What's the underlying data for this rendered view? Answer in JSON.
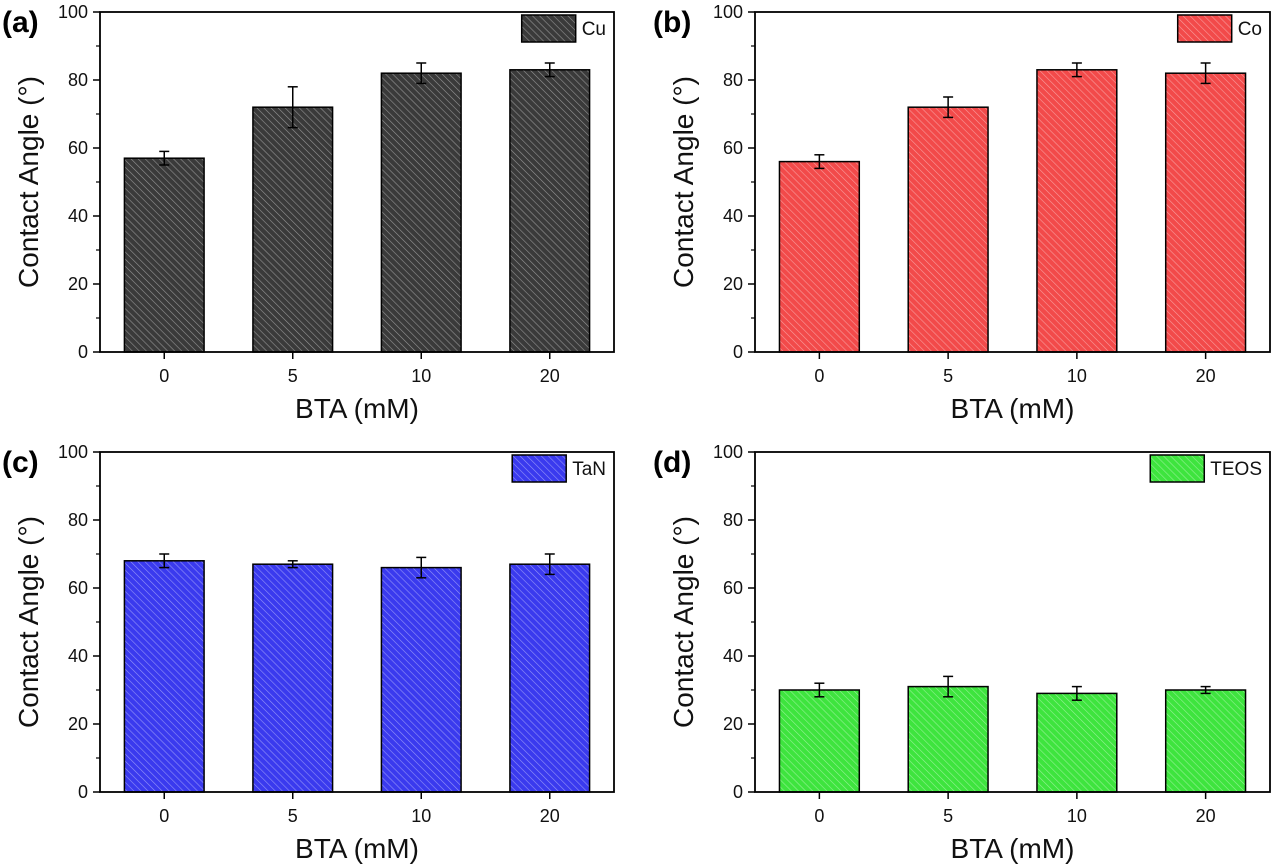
{
  "chart_data": [
    {
      "panel": "(a)",
      "type": "bar",
      "legend": "Cu",
      "color": "#3a3a3a",
      "categories": [
        "0",
        "5",
        "10",
        "20"
      ],
      "values": [
        57,
        72,
        82,
        83
      ],
      "errors": [
        2,
        6,
        3,
        2
      ],
      "xlabel": "BTA (mM)",
      "ylabel": "Contact Angle (°)",
      "ylim": [
        0,
        100
      ],
      "yticks": [
        "0",
        "20",
        "40",
        "60",
        "80",
        "100"
      ],
      "legend_position": "top-right"
    },
    {
      "panel": "(b)",
      "type": "bar",
      "legend": "Co",
      "color": "#f24a4a",
      "categories": [
        "0",
        "5",
        "10",
        "20"
      ],
      "values": [
        56,
        72,
        83,
        82
      ],
      "errors": [
        2,
        3,
        2,
        3
      ],
      "xlabel": "BTA (mM)",
      "ylabel": "Contact Angle (°)",
      "ylim": [
        0,
        100
      ],
      "yticks": [
        "0",
        "20",
        "40",
        "60",
        "80",
        "100"
      ],
      "legend_position": "top-right"
    },
    {
      "panel": "(c)",
      "type": "bar",
      "legend": "TaN",
      "color": "#3a3aee",
      "categories": [
        "0",
        "5",
        "10",
        "20"
      ],
      "values": [
        68,
        67,
        66,
        67
      ],
      "errors": [
        2,
        1,
        3,
        3
      ],
      "xlabel": "BTA (mM)",
      "ylabel": "Contact Angle (°)",
      "ylim": [
        0,
        100
      ],
      "yticks": [
        "0",
        "20",
        "40",
        "60",
        "80",
        "100"
      ],
      "legend_position": "top-right"
    },
    {
      "panel": "(d)",
      "type": "bar",
      "legend": "TEOS",
      "color": "#3ee43e",
      "categories": [
        "0",
        "5",
        "10",
        "20"
      ],
      "values": [
        30,
        31,
        29,
        30
      ],
      "errors": [
        2,
        3,
        2,
        1
      ],
      "xlabel": "BTA (mM)",
      "ylabel": "Contact Angle (°)",
      "ylim": [
        0,
        100
      ],
      "yticks": [
        "0",
        "20",
        "40",
        "60",
        "80",
        "100"
      ],
      "legend_position": "top-right"
    }
  ]
}
